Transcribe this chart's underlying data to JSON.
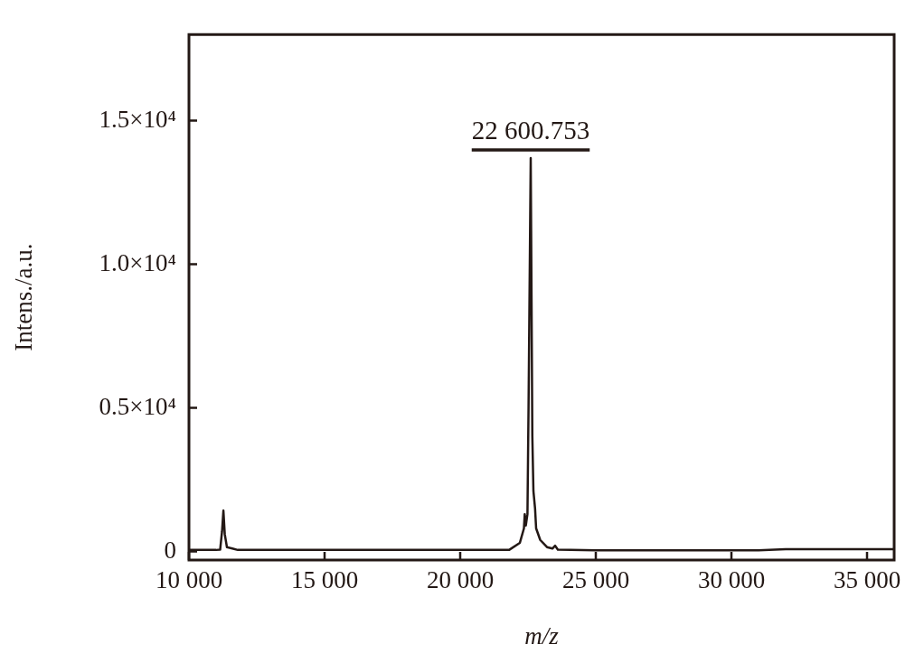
{
  "chart_data": {
    "type": "line",
    "xlabel": "m/z",
    "ylabel": "Intens./a.u.",
    "xlim": [
      10000,
      36000
    ],
    "ylim": [
      -300,
      18000
    ],
    "xticks": [
      {
        "value": 10000,
        "label": "10 000"
      },
      {
        "value": 15000,
        "label": "15 000"
      },
      {
        "value": 20000,
        "label": "20 000"
      },
      {
        "value": 25000,
        "label": "25 000"
      },
      {
        "value": 30000,
        "label": "30 000"
      },
      {
        "value": 35000,
        "label": "35 000"
      }
    ],
    "yticks": [
      0,
      {
        "value": 5000,
        "label": "0.5×10⁴"
      },
      {
        "value": 10000,
        "label": "1.0×10⁴"
      },
      {
        "value": 15000,
        "label": "1.5×10⁴"
      }
    ],
    "grid": false,
    "legend": false,
    "marker": "none",
    "line_style": "solid",
    "annotations": [
      {
        "text": "22 600.753",
        "x": 22600,
        "y": 13700
      }
    ],
    "series": [
      {
        "color": "#231815",
        "x": [
          10000,
          11000,
          11150,
          11220,
          11270,
          11320,
          11400,
          11600,
          11800,
          15000,
          20000,
          21800,
          22200,
          22350,
          22380,
          22420,
          22480,
          22520,
          22600,
          22660,
          22700,
          22760,
          22800,
          22950,
          23200,
          23400,
          23500,
          23600,
          25000,
          31000,
          32000,
          36000
        ],
        "values": [
          50,
          50,
          60,
          700,
          1420,
          600,
          150,
          100,
          50,
          50,
          50,
          50,
          300,
          800,
          1300,
          900,
          1300,
          5000,
          13700,
          4000,
          2100,
          1500,
          800,
          400,
          150,
          100,
          200,
          60,
          40,
          40,
          80,
          80
        ]
      }
    ]
  }
}
